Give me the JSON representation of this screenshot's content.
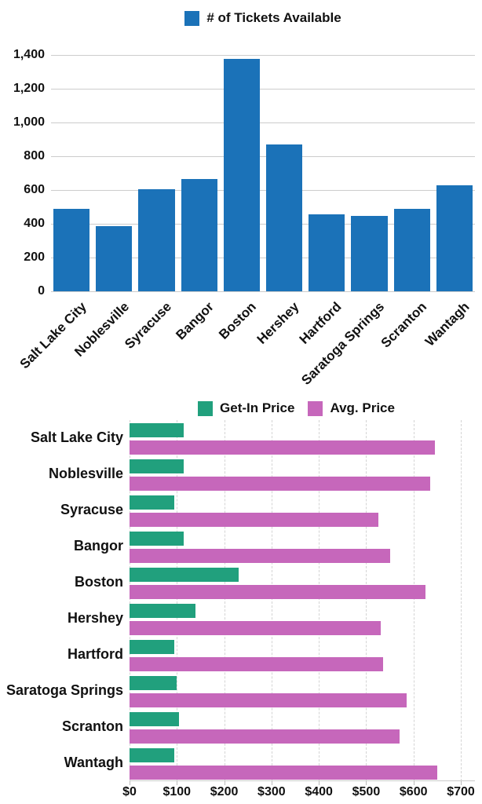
{
  "page": {
    "background": "#ffffff",
    "text_color": "#111111",
    "grid_color": "#cccccc"
  },
  "chart_data": [
    {
      "type": "bar",
      "orientation": "vertical",
      "title": "",
      "legend_label": "# of Tickets Available",
      "legend_position": "top-center",
      "bar_color": "#1b72b8",
      "categories": [
        "Salt Lake City",
        "Noblesville",
        "Syracuse",
        "Bangor",
        "Boston",
        "Hershey",
        "Hartford",
        "Saratoga Springs",
        "Scranton",
        "Wantagh"
      ],
      "values": [
        490,
        385,
        605,
        665,
        1375,
        870,
        455,
        445,
        490,
        630
      ],
      "xlabel": "",
      "ylabel": "",
      "ylim": [
        0,
        1400
      ],
      "ytick_labels": [
        "1,400",
        "1,200",
        "1,000",
        "800",
        "600",
        "400",
        "200",
        "0"
      ],
      "grid": true
    },
    {
      "type": "bar",
      "orientation": "horizontal",
      "title": "",
      "legend_position": "top-center",
      "categories": [
        "Salt Lake City",
        "Noblesville",
        "Syracuse",
        "Bangor",
        "Boston",
        "Hershey",
        "Hartford",
        "Saratoga Springs",
        "Scranton",
        "Wantagh"
      ],
      "series": [
        {
          "name": "Get-In Price",
          "color": "#21a07d",
          "values": [
            115,
            115,
            95,
            115,
            230,
            140,
            95,
            100,
            105,
            95
          ]
        },
        {
          "name": "Avg. Price",
          "color": "#c667bb",
          "values": [
            645,
            635,
            525,
            550,
            625,
            530,
            535,
            585,
            570,
            650
          ]
        }
      ],
      "xlabel": "",
      "ylabel": "",
      "xlim": [
        0,
        700
      ],
      "xtick_labels": [
        "$0",
        "$100",
        "$200",
        "$300",
        "$400",
        "$500",
        "$600",
        "$700"
      ],
      "grid": true
    }
  ]
}
